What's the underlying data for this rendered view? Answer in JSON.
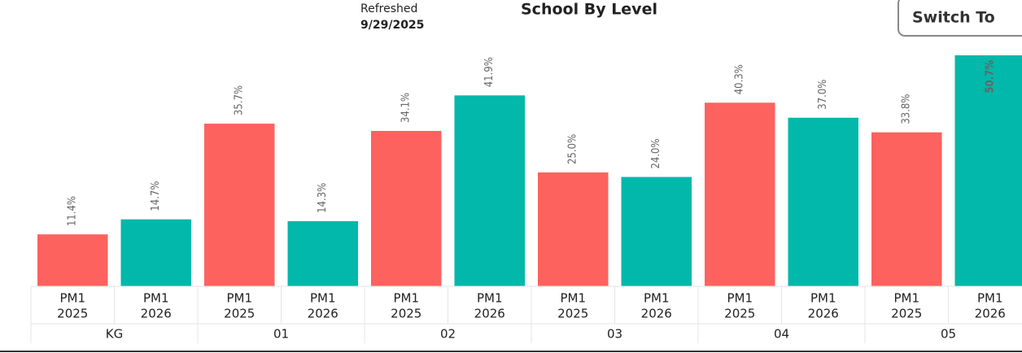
{
  "header": {
    "refreshed_label": "Refreshed",
    "refreshed_date": "9/29/2025",
    "button": "Switch To"
  },
  "chart_data": {
    "type": "bar",
    "title": "School By Level",
    "categories": [
      "KG",
      "01",
      "02",
      "03",
      "04",
      "05"
    ],
    "series": [
      {
        "name": "PM1",
        "period": "2025",
        "color": "#fd625e",
        "values": [
          11.4,
          35.7,
          34.1,
          25.0,
          40.3,
          33.8
        ],
        "value_labels": [
          "11.4%",
          "35.7%",
          "34.1%",
          "25.0%",
          "40.3%",
          "33.8%"
        ]
      },
      {
        "name": "PM1",
        "period": "2026",
        "color": "#01b8aa",
        "values": [
          14.7,
          14.3,
          41.9,
          24.0,
          37.0,
          50.7
        ],
        "value_labels": [
          "14.7%",
          "14.3%",
          "41.9%",
          "24.0%",
          "37.0%",
          "50.7%"
        ]
      }
    ]
  }
}
